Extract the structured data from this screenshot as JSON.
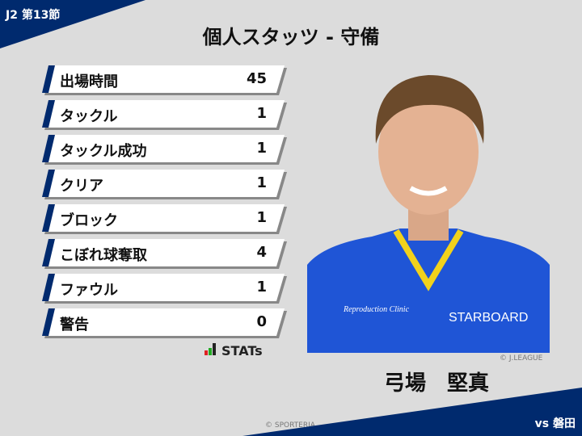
{
  "header": {
    "round": "J2 第13節",
    "title": "個人スタッツ - 守備"
  },
  "stats": [
    {
      "label": "出場時間",
      "value": "45"
    },
    {
      "label": "タックル",
      "value": "1"
    },
    {
      "label": "タックル成功",
      "value": "1"
    },
    {
      "label": "クリア",
      "value": "1"
    },
    {
      "label": "ブロック",
      "value": "1"
    },
    {
      "label": "こぼれ球奪取",
      "value": "4"
    },
    {
      "label": "ファウル",
      "value": "1"
    },
    {
      "label": "警告",
      "value": "0"
    }
  ],
  "logo": {
    "text": "STATs"
  },
  "player": {
    "name": "弓場　堅真",
    "photo_credit": "© J.LEAGUE",
    "jersey_sponsor": "STARBOARD",
    "jersey_text": "Reproduction Clinic"
  },
  "footer": {
    "copyright": "© SPORTERIA",
    "opponent": "vs 磐田"
  },
  "colors": {
    "navy": "#002a6e",
    "background": "#dcdcdc"
  }
}
